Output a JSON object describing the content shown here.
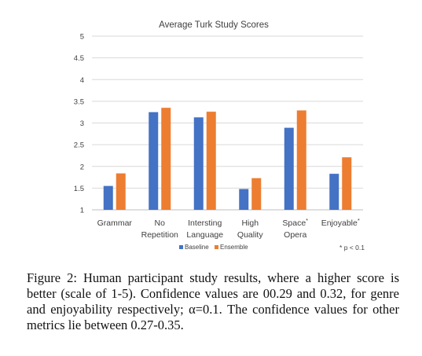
{
  "chart_data": {
    "type": "bar",
    "title": "Average Turk Study Scores",
    "categories": [
      [
        "Grammar"
      ],
      [
        "No",
        "Repetition"
      ],
      [
        "Intersting",
        "Language"
      ],
      [
        "High",
        "Quality"
      ],
      [
        "Space*",
        "Opera"
      ],
      [
        "Enjoyable*"
      ]
    ],
    "series": [
      {
        "name": "Baseline",
        "color": "#4472C4",
        "values": [
          1.55,
          3.25,
          3.13,
          1.48,
          2.89,
          1.83
        ]
      },
      {
        "name": "Ensemble",
        "color": "#ED7D31",
        "values": [
          1.84,
          3.35,
          3.26,
          1.73,
          3.29,
          2.21
        ]
      }
    ],
    "ylim": [
      1,
      5
    ],
    "yticks": [
      "1",
      "1.5",
      "2",
      "2.5",
      "3",
      "3.5",
      "4",
      "4.5",
      "5"
    ],
    "grid": true,
    "legend_position": "bottom-center",
    "annotation": "* p < 0.1",
    "xlabel": "",
    "ylabel": ""
  },
  "caption": "Figure 2: Human participant study results, where a higher score is better (scale of 1-5). Confidence values are 00.29 and 0.32, for genre and enjoyability respectively; α=0.1. The confidence values for other metrics lie between 0.27-0.35."
}
